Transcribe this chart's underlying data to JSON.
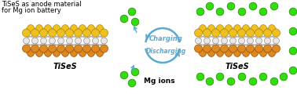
{
  "title_line1": "TiSeS as anode material",
  "title_line2": "for Mg ion battery",
  "label_left": "TiSeS",
  "label_right": "TiSeS",
  "mg_label": "Mg ions",
  "charging_text": "Charging",
  "discharging_text": "Discharging",
  "bg_color": "#ffffff",
  "title_fontsize": 6.0,
  "label_fontsize": 7.0,
  "mg_fontsize": 6.5,
  "arrow_color": "#5aaad0",
  "mg_color": "#33dd11",
  "mg_outline": "#229900",
  "yellow_color": "#f0c020",
  "yellow_outline": "#b08800",
  "orange_color": "#dd8820",
  "orange_outline": "#a05000",
  "gray_color": "#c0c0c0",
  "gray_outline": "#808080",
  "white_color": "#e8e8e8",
  "white_outline": "#909090",
  "fig_width": 3.78,
  "fig_height": 1.2,
  "dpi": 100
}
